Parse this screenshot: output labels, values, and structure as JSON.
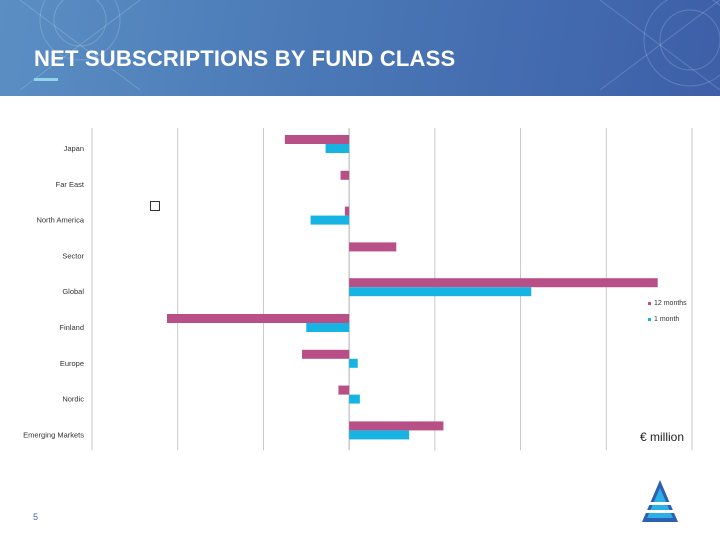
{
  "header": {
    "title": "NET SUBSCRIPTIONS BY FUND CLASS"
  },
  "page_number": "5",
  "unit_label": "€ million",
  "colors": {
    "series_12m": "#b84f86",
    "series_1m": "#16b3e3",
    "grid": "#bdbdbd"
  },
  "chart_data": {
    "type": "bar",
    "orientation": "horizontal",
    "categories": [
      "Japan",
      "Far East",
      "North America",
      "Sector",
      "Global",
      "Finland",
      "Europe",
      "Nordic",
      "Emerging Markets"
    ],
    "series": [
      {
        "name": "12 months",
        "values": [
          -150,
          -20,
          -10,
          110,
          720,
          -425,
          -110,
          -25,
          220
        ]
      },
      {
        "name": "1 month",
        "values": [
          -55,
          0,
          -90,
          0,
          425,
          -100,
          20,
          25,
          140
        ]
      }
    ],
    "xlim": [
      -600,
      800
    ],
    "xticks": [
      "-600",
      "-400",
      "-200",
      "0",
      "200",
      "400",
      "600",
      "800"
    ],
    "grid": true,
    "legend_position": "right"
  }
}
